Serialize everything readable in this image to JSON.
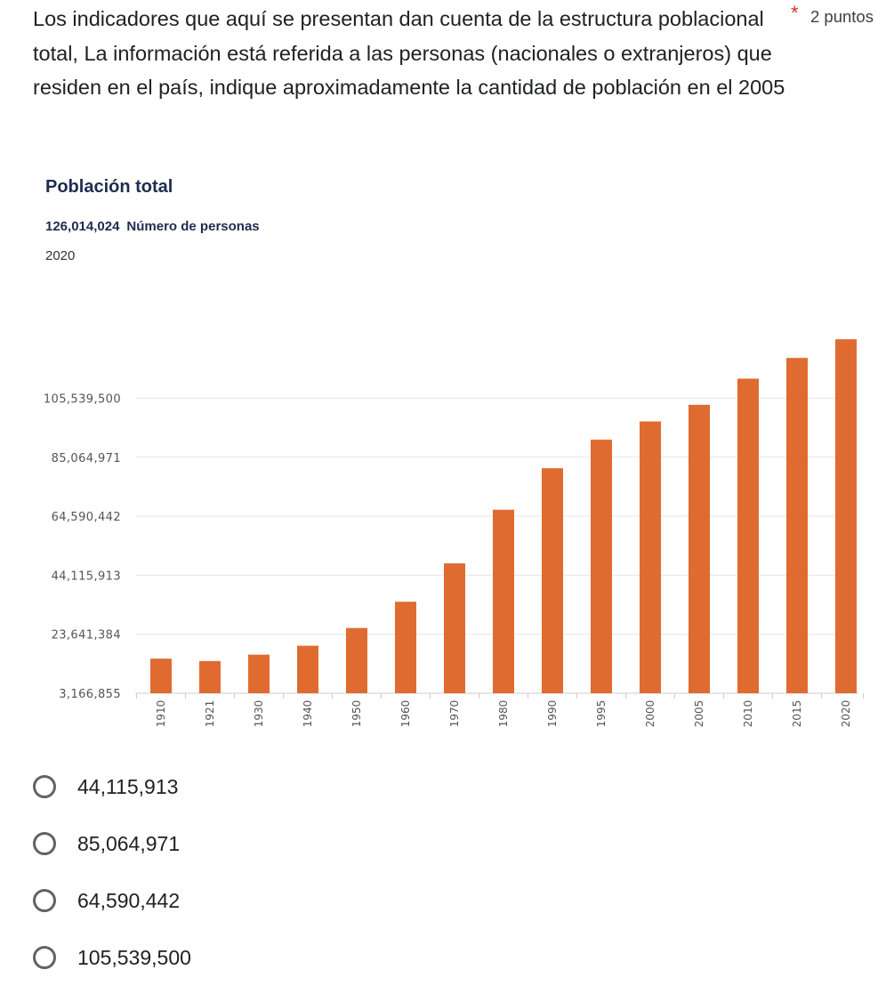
{
  "question": {
    "text": "Los indicadores que aquí se presentan dan cuenta de la estructura poblacional total,  La información está referida a las personas (nacionales o extranjeros) que residen en el país, indique aproximadamente la cantidad de población en el 2005",
    "required_mark": "*",
    "points": "2 puntos"
  },
  "chart_header": {
    "title": "Población total",
    "value": "126,014,024",
    "unit": "Número de personas",
    "year": "2020"
  },
  "chart_data": {
    "type": "bar",
    "title": "Población total",
    "xlabel": "",
    "ylabel": "",
    "categories": [
      "1910",
      "1921",
      "1930",
      "1940",
      "1950",
      "1960",
      "1970",
      "1980",
      "1990",
      "1995",
      "2000",
      "2005",
      "2010",
      "2015",
      "2020"
    ],
    "values": [
      15160369,
      14334780,
      16552722,
      19653552,
      25791017,
      34923129,
      48225238,
      66846833,
      81249645,
      91158290,
      97483412,
      103263388,
      112336538,
      119530753,
      126014024
    ],
    "yticks": [
      3166855,
      23641384,
      44115913,
      64590442,
      85064971,
      105539500
    ],
    "ytick_labels": [
      "3,166,855",
      "23,641,384",
      "44,115,913",
      "64,590,442",
      "85,064,971",
      "105,539,500"
    ],
    "ylim": [
      3166855,
      126014024
    ],
    "grid": true,
    "bar_color": "#e06b30",
    "grid_color": "#e6e6e6"
  },
  "options": [
    {
      "label": "44,115,913"
    },
    {
      "label": "85,064,971"
    },
    {
      "label": "64,590,442"
    },
    {
      "label": "105,539,500"
    }
  ]
}
